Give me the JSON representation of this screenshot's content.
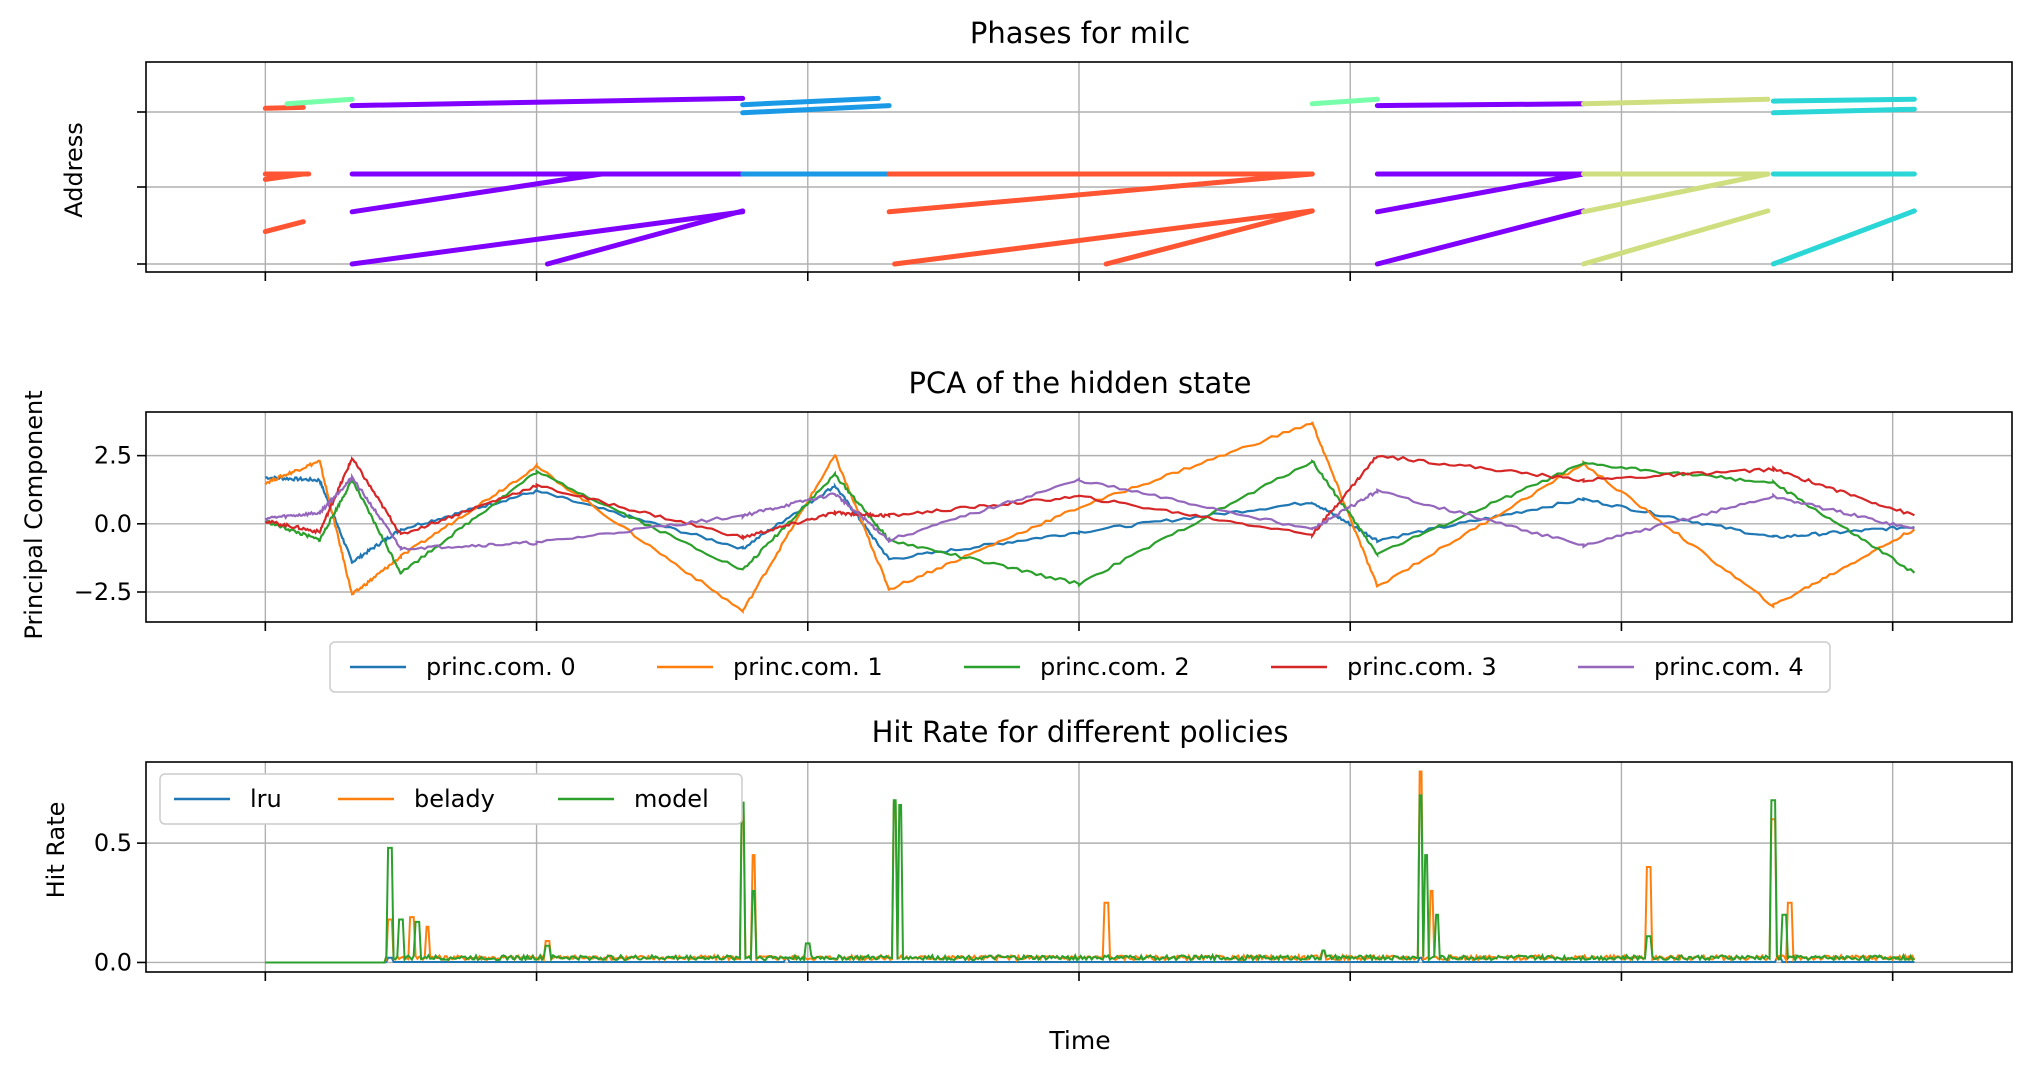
{
  "figure": {
    "xlabel": "Time"
  },
  "chart_data": [
    {
      "type": "scatter",
      "title": "Phases for milc",
      "xlabel": "",
      "ylabel": "Address",
      "xlim": [
        -0.22,
        3.22
      ],
      "ylim": [
        -0.04,
        2.04
      ],
      "y_ticks": [
        "",
        "",
        ""
      ],
      "grid": true,
      "legend": "none",
      "phase_segments": [
        {
          "color": "#ff5533",
          "points": [
            [
              0,
              1.73
            ],
            [
              0.07,
              1.74
            ]
          ]
        },
        {
          "color": "#ff5533",
          "points": [
            [
              0,
              1.0
            ],
            [
              0.08,
              1.0
            ]
          ]
        },
        {
          "color": "#ff5533",
          "points": [
            [
              0,
              0.94
            ],
            [
              0.07,
              1.0
            ]
          ]
        },
        {
          "color": "#ff5533",
          "points": [
            [
              0,
              0.36
            ],
            [
              0.07,
              0.47
            ]
          ]
        },
        {
          "color": "#77ffaa",
          "points": [
            [
              0.04,
              1.78
            ],
            [
              0.16,
              1.83
            ]
          ]
        },
        {
          "color": "#8000ff",
          "points": [
            [
              0.16,
              1.76
            ],
            [
              0.88,
              1.84
            ]
          ]
        },
        {
          "color": "#8000ff",
          "points": [
            [
              0.16,
              1.0
            ],
            [
              0.88,
              1.0
            ]
          ]
        },
        {
          "color": "#8000ff",
          "points": [
            [
              0.16,
              0.58
            ],
            [
              0.62,
              1.0
            ]
          ]
        },
        {
          "color": "#8000ff",
          "points": [
            [
              0.16,
              0.0
            ],
            [
              0.88,
              0.58
            ]
          ]
        },
        {
          "color": "#8000ff",
          "points": [
            [
              0.52,
              0.0
            ],
            [
              0.88,
              0.59
            ]
          ]
        },
        {
          "color": "#1a9ae6",
          "points": [
            [
              0.88,
              1.68
            ],
            [
              1.15,
              1.76
            ]
          ]
        },
        {
          "color": "#1a9ae6",
          "points": [
            [
              0.88,
              1.77
            ],
            [
              1.13,
              1.84
            ]
          ]
        },
        {
          "color": "#1a9ae6",
          "points": [
            [
              0.88,
              1.0
            ],
            [
              1.15,
              1.0
            ]
          ]
        },
        {
          "color": "#ff5533",
          "points": [
            [
              1.15,
              1.0
            ],
            [
              1.93,
              1.0
            ]
          ]
        },
        {
          "color": "#ff5533",
          "points": [
            [
              1.15,
              0.58
            ],
            [
              1.93,
              1.0
            ]
          ]
        },
        {
          "color": "#ff5533",
          "points": [
            [
              1.16,
              0.0
            ],
            [
              1.93,
              0.59
            ]
          ]
        },
        {
          "color": "#ff5533",
          "points": [
            [
              1.55,
              0.0
            ],
            [
              1.93,
              0.59
            ]
          ]
        },
        {
          "color": "#77ffaa",
          "points": [
            [
              1.93,
              1.78
            ],
            [
              2.05,
              1.83
            ]
          ]
        },
        {
          "color": "#8000ff",
          "points": [
            [
              2.05,
              1.76
            ],
            [
              2.43,
              1.78
            ]
          ]
        },
        {
          "color": "#8000ff",
          "points": [
            [
              2.05,
              1.0
            ],
            [
              2.43,
              1.0
            ]
          ]
        },
        {
          "color": "#8000ff",
          "points": [
            [
              2.05,
              0.58
            ],
            [
              2.43,
              1.0
            ]
          ]
        },
        {
          "color": "#8000ff",
          "points": [
            [
              2.05,
              0.0
            ],
            [
              2.43,
              0.59
            ]
          ]
        },
        {
          "color": "#cfdf7f",
          "points": [
            [
              2.43,
              1.78
            ],
            [
              2.77,
              1.83
            ]
          ]
        },
        {
          "color": "#cfdf7f",
          "points": [
            [
              2.43,
              1.0
            ],
            [
              2.77,
              1.0
            ]
          ]
        },
        {
          "color": "#cfdf7f",
          "points": [
            [
              2.43,
              0.58
            ],
            [
              2.77,
              1.0
            ]
          ]
        },
        {
          "color": "#cfdf7f",
          "points": [
            [
              2.43,
              0.0
            ],
            [
              2.77,
              0.59
            ]
          ]
        },
        {
          "color": "#2ad6d6",
          "points": [
            [
              2.78,
              1.68
            ],
            [
              3.04,
              1.72
            ]
          ]
        },
        {
          "color": "#2ad6d6",
          "points": [
            [
              2.78,
              1.81
            ],
            [
              3.04,
              1.83
            ]
          ]
        },
        {
          "color": "#2ad6d6",
          "points": [
            [
              2.78,
              1.0
            ],
            [
              3.04,
              1.0
            ]
          ]
        },
        {
          "color": "#2ad6d6",
          "points": [
            [
              2.78,
              0.0
            ],
            [
              3.04,
              0.59
            ]
          ]
        }
      ]
    },
    {
      "type": "line",
      "title": "PCA of the hidden state",
      "xlabel": "",
      "ylabel": "Principal Component",
      "xlim": [
        -0.22,
        3.22
      ],
      "ylim": [
        -3.6,
        4.1
      ],
      "y_ticks": [
        "2.5",
        "0.0",
        "−2.5"
      ],
      "y_tick_values": [
        2.5,
        0.0,
        -2.5
      ],
      "grid": true,
      "legend": "below-center",
      "x": [
        0,
        0.1,
        0.16,
        0.25,
        0.5,
        0.88,
        1.05,
        1.15,
        1.5,
        1.93,
        2.05,
        2.43,
        2.78,
        3.04
      ],
      "series": [
        {
          "name": "princ.com. 0",
          "color": "#1f77b4",
          "values": [
            1.7,
            1.6,
            -1.4,
            -0.2,
            1.2,
            -0.9,
            1.4,
            -1.3,
            -0.3,
            0.8,
            -0.6,
            0.9,
            -0.5,
            -0.1
          ]
        },
        {
          "name": "princ.com. 1",
          "color": "#ff7f0e",
          "values": [
            1.5,
            2.3,
            -2.6,
            -1.2,
            2.1,
            -3.2,
            2.5,
            -2.4,
            0.6,
            3.7,
            -2.3,
            2.2,
            -3.0,
            -0.2
          ]
        },
        {
          "name": "princ.com. 2",
          "color": "#2ca02c",
          "values": [
            0.1,
            -0.6,
            1.6,
            -1.8,
            1.9,
            -1.7,
            1.8,
            -0.6,
            -2.2,
            2.3,
            -1.1,
            2.2,
            1.5,
            -1.8
          ]
        },
        {
          "name": "princ.com. 3",
          "color": "#d62728",
          "values": [
            0.1,
            -0.3,
            2.4,
            -0.4,
            1.4,
            -0.5,
            0.4,
            0.3,
            1.0,
            -0.4,
            2.5,
            1.6,
            2.0,
            0.3
          ]
        },
        {
          "name": "princ.com. 4",
          "color": "#9467bd",
          "values": [
            0.2,
            0.4,
            1.7,
            -0.9,
            -0.7,
            0.3,
            1.1,
            -0.6,
            1.6,
            -0.2,
            1.2,
            -0.8,
            1.0,
            -0.2
          ]
        }
      ]
    },
    {
      "type": "line",
      "title": "Hit Rate for different policies",
      "xlabel": "",
      "ylabel": "Hit Rate",
      "xlim": [
        -0.22,
        3.22
      ],
      "ylim": [
        -0.04,
        0.84
      ],
      "y_ticks": [
        "0.5",
        "0.0"
      ],
      "y_tick_values": [
        0.5,
        0.0
      ],
      "grid": true,
      "legend": "upper-left",
      "baseline": 0.01,
      "end_x": 3.04,
      "series": [
        {
          "name": "lru",
          "color": "#1f77b4",
          "spikes": [
            [
              0.23,
              0.02
            ],
            [
              0.96,
              0.02
            ],
            [
              2.13,
              0.02
            ],
            [
              2.79,
              0.02
            ]
          ]
        },
        {
          "name": "belady",
          "color": "#ff7f0e",
          "spikes": [
            [
              0.23,
              0.18
            ],
            [
              0.27,
              0.19
            ],
            [
              0.3,
              0.15
            ],
            [
              0.88,
              0.62
            ],
            [
              0.9,
              0.45
            ],
            [
              1.16,
              0.67
            ],
            [
              1.55,
              0.25
            ],
            [
              2.13,
              0.8
            ],
            [
              2.15,
              0.3
            ],
            [
              2.55,
              0.4
            ],
            [
              2.78,
              0.6
            ],
            [
              2.81,
              0.25
            ],
            [
              0.52,
              0.09
            ],
            [
              0.9,
              0.06
            ],
            [
              1.95,
              0.05
            ]
          ]
        },
        {
          "name": "model",
          "color": "#2ca02c",
          "spikes": [
            [
              0.23,
              0.48
            ],
            [
              0.25,
              0.18
            ],
            [
              0.28,
              0.17
            ],
            [
              0.88,
              0.67
            ],
            [
              0.9,
              0.3
            ],
            [
              1.16,
              0.68
            ],
            [
              1.17,
              0.66
            ],
            [
              2.13,
              0.7
            ],
            [
              2.14,
              0.45
            ],
            [
              2.16,
              0.2
            ],
            [
              2.55,
              0.11
            ],
            [
              2.78,
              0.68
            ],
            [
              2.8,
              0.2
            ],
            [
              0.52,
              0.07
            ],
            [
              1.0,
              0.08
            ],
            [
              1.95,
              0.05
            ]
          ]
        }
      ]
    }
  ]
}
